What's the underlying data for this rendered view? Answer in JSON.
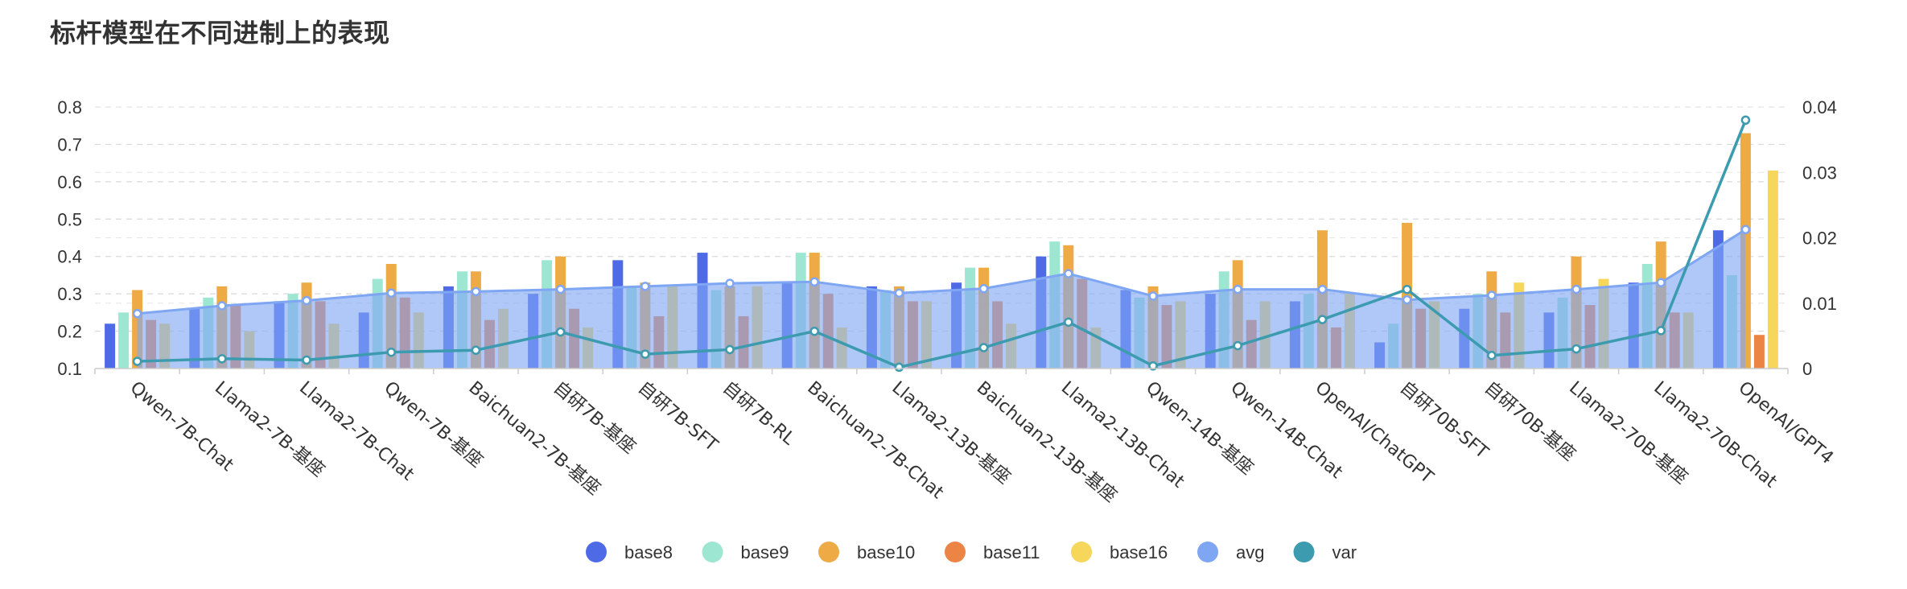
{
  "chart_data": {
    "type": "bar",
    "title": "标杆模型在不同进制上的表现",
    "categories": [
      "Qwen-7B-Chat",
      "Llama2-7B-基座",
      "Llama2-7B-Chat",
      "Qwen-7B-基座",
      "Baichuan2-7B-基座",
      "自研7B-基座",
      "自研7B-SFT",
      "自研7B-RL",
      "Baichuan2-7B-Chat",
      "Llama2-13B-基座",
      "Baichuan2-13B-基座",
      "Llama2-13B-Chat",
      "Qwen-14B-基座",
      "Qwen-14B-Chat",
      "OpenAI/ChatGPT",
      "自研70B-SFT",
      "自研70B-基座",
      "Llama2-70B-基座",
      "Llama2-70B-Chat",
      "OpenAI/GPT4"
    ],
    "y_left": {
      "ticks": [
        "0.1",
        "0.2",
        "0.3",
        "0.4",
        "0.5",
        "0.6",
        "0.7",
        "0.8"
      ],
      "min": 0.1,
      "max": 0.8
    },
    "y_right": {
      "ticks": [
        "0",
        "0.01",
        "0.02",
        "0.03",
        "0.04"
      ],
      "min": 0,
      "max": 0.04
    },
    "grid": true,
    "legend_position": "bottom",
    "series": [
      {
        "name": "base8",
        "kind": "bar",
        "color": "#4f6ae6",
        "values": [
          0.22,
          0.26,
          0.28,
          0.25,
          0.32,
          0.3,
          0.39,
          0.41,
          0.33,
          0.32,
          0.33,
          0.4,
          0.31,
          0.3,
          0.28,
          0.17,
          0.26,
          0.25,
          0.33,
          0.47
        ]
      },
      {
        "name": "base9",
        "kind": "bar",
        "color": "#9de6d2",
        "values": [
          0.25,
          0.29,
          0.3,
          0.34,
          0.36,
          0.39,
          0.32,
          0.31,
          0.41,
          0.31,
          0.37,
          0.44,
          0.29,
          0.36,
          0.3,
          0.22,
          0.3,
          0.29,
          0.38,
          0.35
        ]
      },
      {
        "name": "base10",
        "kind": "bar",
        "color": "#eeaa45",
        "values": [
          0.31,
          0.32,
          0.33,
          0.38,
          0.36,
          0.4,
          0.33,
          0.32,
          0.41,
          0.32,
          0.37,
          0.43,
          0.32,
          0.39,
          0.47,
          0.49,
          0.36,
          0.4,
          0.44,
          0.73
        ]
      },
      {
        "name": "base11",
        "kind": "bar",
        "color": "#ec8446",
        "values": [
          0.23,
          0.27,
          0.28,
          0.29,
          0.23,
          0.26,
          0.24,
          0.24,
          0.3,
          0.28,
          0.28,
          0.34,
          0.27,
          0.23,
          0.21,
          0.26,
          0.25,
          0.27,
          0.25,
          0.19
        ]
      },
      {
        "name": "base16",
        "kind": "bar",
        "color": "#f6d75c",
        "values": [
          0.22,
          0.2,
          0.22,
          0.25,
          0.26,
          0.21,
          0.32,
          0.32,
          0.21,
          0.28,
          0.22,
          0.21,
          0.28,
          0.28,
          0.3,
          0.28,
          0.33,
          0.34,
          0.25,
          0.63
        ]
      },
      {
        "name": "avg",
        "kind": "area",
        "axis": "left",
        "color": "#7fa6f3",
        "values": [
          0.247,
          0.268,
          0.282,
          0.302,
          0.306,
          0.312,
          0.32,
          0.328,
          0.332,
          0.302,
          0.314,
          0.354,
          0.294,
          0.312,
          0.312,
          0.284,
          0.296,
          0.312,
          0.33,
          0.472
        ]
      },
      {
        "name": "var",
        "kind": "line",
        "axis": "right",
        "color": "#3d9bb0",
        "values": [
          0.0011,
          0.0015,
          0.0013,
          0.0025,
          0.0028,
          0.0056,
          0.0022,
          0.0029,
          0.0057,
          0.0002,
          0.0032,
          0.0071,
          0.0004,
          0.0035,
          0.0075,
          0.0121,
          0.002,
          0.003,
          0.0058,
          0.038
        ]
      }
    ]
  },
  "legend": [
    {
      "label": "base8",
      "color": "#4f6ae6"
    },
    {
      "label": "base9",
      "color": "#9de6d2"
    },
    {
      "label": "base10",
      "color": "#eeaa45"
    },
    {
      "label": "base11",
      "color": "#ec8446"
    },
    {
      "label": "base16",
      "color": "#f6d75c"
    },
    {
      "label": "avg",
      "color": "#7fa6f3"
    },
    {
      "label": "var",
      "color": "#3d9bb0"
    }
  ]
}
